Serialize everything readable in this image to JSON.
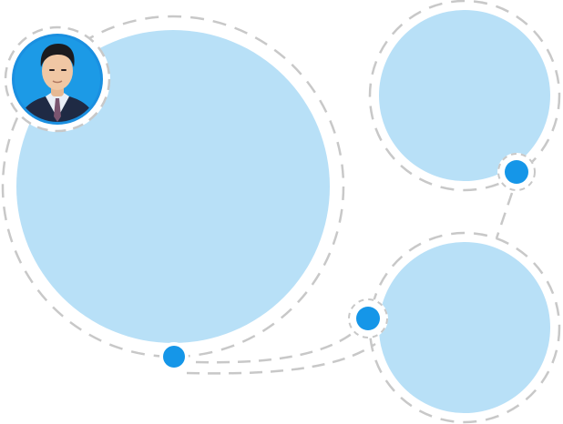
{
  "colors": {
    "bubble_fill": "#b8e0f7",
    "dashed_ring": "#c8c8c8",
    "node_fill": "#1596e8",
    "photo_ring": "#1a8fe0",
    "photo_bg": "#1c9ae6"
  },
  "icons": {
    "avatar": "profile-photo-man-in-suit"
  },
  "nodes": [
    {
      "id": "large-bubble"
    },
    {
      "id": "top-right-bubble"
    },
    {
      "id": "bottom-right-bubble"
    }
  ],
  "connectors": [
    {
      "from": "top-right-bubble",
      "to": "bottom-right-bubble"
    },
    {
      "from": "large-bubble",
      "to": "bottom-right-bubble"
    }
  ]
}
